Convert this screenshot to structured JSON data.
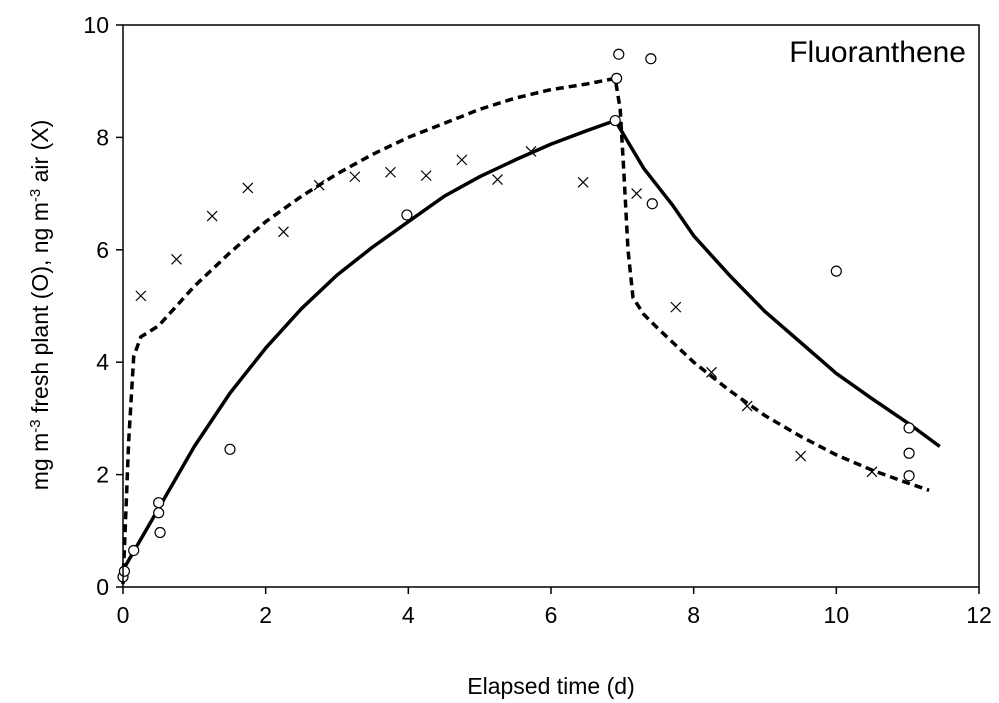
{
  "chart_data": {
    "type": "scatter",
    "title": "Fluoranthene",
    "xlabel": "Elapsed time (d)",
    "ylabel": {
      "parts": [
        {
          "text": "mg m",
          "sup": false
        },
        {
          "text": "-3",
          "sup": true
        },
        {
          "text": " fresh plant (O), ng m",
          "sup": false
        },
        {
          "text": "-3",
          "sup": true
        },
        {
          "text": " air (X)",
          "sup": false
        }
      ]
    },
    "xlim": [
      0,
      12
    ],
    "ylim": [
      0,
      10
    ],
    "x_ticks": [
      0,
      2,
      4,
      6,
      8,
      10,
      12
    ],
    "y_ticks": [
      0,
      2,
      4,
      6,
      8,
      10
    ],
    "x_tick_labels": [
      "0",
      "2",
      "4",
      "6",
      "8",
      "10",
      "12"
    ],
    "y_tick_labels": [
      "0",
      "2",
      "4",
      "6",
      "8",
      "10"
    ],
    "grid": false,
    "series": [
      {
        "marker": "circle",
        "style": "markers",
        "points": [
          [
            0,
            0.18
          ],
          [
            0.02,
            0.28
          ],
          [
            0.15,
            0.65
          ],
          [
            0.5,
            1.5
          ],
          [
            0.5,
            1.32
          ],
          [
            0.52,
            0.97
          ],
          [
            1.5,
            2.45
          ],
          [
            3.98,
            6.62
          ],
          [
            6.92,
            9.05
          ],
          [
            6.95,
            9.48
          ],
          [
            6.9,
            8.3
          ],
          [
            7.4,
            9.4
          ],
          [
            7.42,
            6.82
          ],
          [
            10.0,
            5.62
          ],
          [
            11.02,
            2.83
          ],
          [
            11.02,
            2.38
          ],
          [
            11.02,
            1.98
          ]
        ]
      },
      {
        "marker": "x",
        "style": "markers",
        "points": [
          [
            0.25,
            5.18
          ],
          [
            0.75,
            5.83
          ],
          [
            1.25,
            6.6
          ],
          [
            1.75,
            7.1
          ],
          [
            2.25,
            6.32
          ],
          [
            2.75,
            7.15
          ],
          [
            3.25,
            7.3
          ],
          [
            3.75,
            7.38
          ],
          [
            4.25,
            7.32
          ],
          [
            4.75,
            7.6
          ],
          [
            5.25,
            7.25
          ],
          [
            5.72,
            7.75
          ],
          [
            6.45,
            7.2
          ],
          [
            7.2,
            7.0
          ],
          [
            7.75,
            4.98
          ],
          [
            8.25,
            3.82
          ],
          [
            8.75,
            3.22
          ],
          [
            9.5,
            2.33
          ],
          [
            10.5,
            2.05
          ]
        ]
      },
      {
        "style": "solid-line",
        "points": [
          [
            0,
            0.3
          ],
          [
            0.5,
            1.4
          ],
          [
            1,
            2.5
          ],
          [
            1.5,
            3.45
          ],
          [
            2,
            4.25
          ],
          [
            2.5,
            4.95
          ],
          [
            3,
            5.55
          ],
          [
            3.5,
            6.05
          ],
          [
            4,
            6.5
          ],
          [
            4.5,
            6.95
          ],
          [
            5,
            7.3
          ],
          [
            5.5,
            7.6
          ],
          [
            6,
            7.88
          ],
          [
            6.5,
            8.12
          ],
          [
            6.9,
            8.3
          ],
          [
            7.3,
            7.45
          ],
          [
            7.7,
            6.8
          ],
          [
            8,
            6.25
          ],
          [
            8.5,
            5.55
          ],
          [
            9,
            4.9
          ],
          [
            9.5,
            4.35
          ],
          [
            10,
            3.8
          ],
          [
            10.5,
            3.35
          ],
          [
            11,
            2.92
          ],
          [
            11.45,
            2.5
          ]
        ]
      },
      {
        "style": "dashed-line",
        "points": [
          [
            0,
            0.05
          ],
          [
            0.08,
            2.6
          ],
          [
            0.15,
            4.1
          ],
          [
            0.25,
            4.45
          ],
          [
            0.5,
            4.65
          ],
          [
            0.75,
            5.0
          ],
          [
            1,
            5.35
          ],
          [
            1.5,
            5.95
          ],
          [
            2,
            6.5
          ],
          [
            2.5,
            6.95
          ],
          [
            3,
            7.35
          ],
          [
            3.5,
            7.7
          ],
          [
            4,
            8.0
          ],
          [
            4.5,
            8.25
          ],
          [
            5,
            8.5
          ],
          [
            5.5,
            8.7
          ],
          [
            6,
            8.85
          ],
          [
            6.5,
            8.95
          ],
          [
            6.9,
            9.05
          ],
          [
            6.97,
            8.5
          ],
          [
            7.02,
            7.4
          ],
          [
            7.08,
            6.0
          ],
          [
            7.15,
            5.15
          ],
          [
            7.3,
            4.85
          ],
          [
            7.5,
            4.6
          ],
          [
            8,
            4.0
          ],
          [
            8.5,
            3.5
          ],
          [
            9,
            3.05
          ],
          [
            9.5,
            2.68
          ],
          [
            10,
            2.35
          ],
          [
            10.5,
            2.08
          ],
          [
            11,
            1.85
          ],
          [
            11.3,
            1.72
          ]
        ]
      }
    ]
  }
}
